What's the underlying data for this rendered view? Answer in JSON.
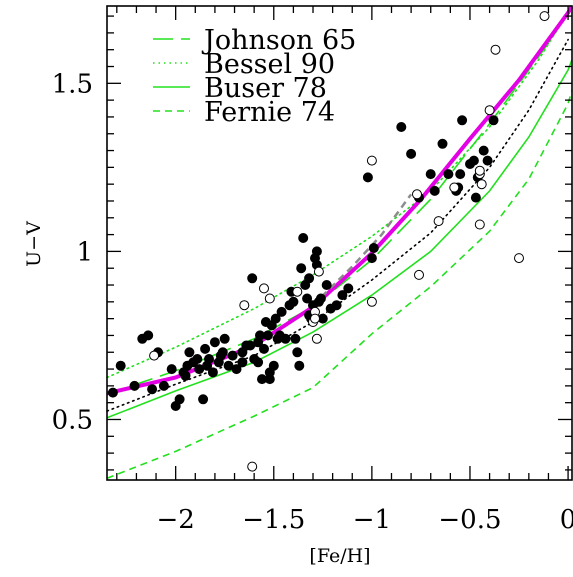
{
  "chart_data": {
    "type": "scatter",
    "title": "",
    "xlabel": "[Fe/H]",
    "ylabel": "U−V",
    "xlim": [
      -2.35,
      0.02
    ],
    "ylim": [
      0.32,
      1.73
    ],
    "xticks": [
      -2,
      -1.5,
      -1,
      -0.5,
      0
    ],
    "xtick_labels": [
      "−2",
      "−1.5",
      "−1",
      "−0.5",
      "0"
    ],
    "yticks": [
      0.5,
      1,
      1.5
    ],
    "ytick_labels": [
      "0.5",
      "1",
      "1.5"
    ],
    "grid": false,
    "legend_position": "top-left",
    "colors": {
      "green": "#22e01e",
      "magenta": "#e400e4",
      "gray": "#8c8c8c",
      "black": "#000000"
    },
    "series": [
      {
        "name": "Johnson 65",
        "kind": "line",
        "style": "longdash",
        "color": "#22e01e",
        "x": [
          -2.35,
          -2.0,
          -1.6,
          -1.3,
          -1.0,
          -0.7,
          -0.4,
          -0.1,
          0.02
        ],
        "y": [
          0.575,
          0.645,
          0.74,
          0.835,
          0.975,
          1.155,
          1.38,
          1.62,
          1.73
        ]
      },
      {
        "name": "Bessel 90",
        "kind": "line",
        "style": "dotted",
        "color": "#22e01e",
        "x": [
          -2.35,
          -2.0,
          -1.6,
          -1.3,
          -1.0,
          -0.7,
          -0.4,
          -0.15,
          0.02
        ],
        "y": [
          0.625,
          0.715,
          0.83,
          0.93,
          1.045,
          1.18,
          1.37,
          1.57,
          1.73
        ]
      },
      {
        "name": "Buser 78",
        "kind": "line",
        "style": "solid",
        "color": "#22e01e",
        "x": [
          -2.35,
          -2.0,
          -1.6,
          -1.3,
          -1.0,
          -0.7,
          -0.4,
          -0.2,
          0.0,
          0.02
        ],
        "y": [
          0.505,
          0.585,
          0.67,
          0.76,
          0.87,
          1.0,
          1.18,
          1.34,
          1.54,
          1.57
        ]
      },
      {
        "name": "Fernie 74",
        "kind": "line",
        "style": "dashed",
        "color": "#22e01e",
        "x": [
          -2.35,
          -2.0,
          -1.6,
          -1.3,
          -1.0,
          -0.7,
          -0.4,
          -0.2,
          0.0,
          0.02
        ],
        "y": [
          0.325,
          0.405,
          0.51,
          0.595,
          0.755,
          0.895,
          1.06,
          1.215,
          1.44,
          1.48
        ]
      },
      {
        "name": "",
        "kind": "line",
        "style": "solid",
        "color": "#e400e4",
        "x": [
          -2.35,
          -2.0,
          -1.6,
          -1.3,
          -1.0,
          -0.75,
          -0.5,
          -0.25,
          0.0,
          0.02
        ],
        "y": [
          0.578,
          0.625,
          0.72,
          0.835,
          0.995,
          1.155,
          1.335,
          1.51,
          1.71,
          1.73
        ]
      },
      {
        "name": "",
        "kind": "line",
        "style": "dashed",
        "color": "#8c8c8c",
        "x": [
          -1.3,
          -1.1,
          -0.95,
          -0.8
        ],
        "y": [
          0.84,
          0.955,
          1.05,
          1.17
        ]
      },
      {
        "name": "",
        "kind": "line",
        "style": "dotted",
        "color": "#000000",
        "x": [
          -2.35,
          -2.0,
          -1.6,
          -1.3,
          -1.0,
          -0.7,
          -0.4,
          -0.2,
          0.0
        ],
        "y": [
          0.525,
          0.605,
          0.69,
          0.79,
          0.915,
          1.055,
          1.25,
          1.42,
          1.63
        ]
      },
      {
        "name": "",
        "kind": "points",
        "marker": "filled",
        "color": "#000000",
        "x": [
          -2.32,
          -2.28,
          -2.21,
          -2.17,
          -2.14,
          -2.12,
          -2.09,
          -2.06,
          -2.0,
          -1.98,
          -1.96,
          -1.94,
          -1.93,
          -1.91,
          -1.89,
          -1.88,
          -1.86,
          -1.84,
          -1.83,
          -1.81,
          -1.8,
          -1.78,
          -1.76,
          -1.75,
          -1.73,
          -1.71,
          -1.69,
          -1.66,
          -1.64,
          -1.62,
          -1.61,
          -1.6,
          -1.58,
          -1.57,
          -1.56,
          -1.55,
          -1.54,
          -1.53,
          -1.52,
          -1.51,
          -1.5,
          -1.49,
          -1.48,
          -1.47,
          -1.46,
          -1.44,
          -1.42,
          -1.41,
          -1.4,
          -1.39,
          -1.38,
          -1.37,
          -1.36,
          -1.35,
          -1.34,
          -1.33,
          -1.32,
          -1.31,
          -1.3,
          -1.29,
          -1.28,
          -1.28,
          -1.27,
          -1.26,
          -1.25,
          -1.23,
          -1.21,
          -1.18,
          -1.15,
          -1.12,
          -1.02,
          -1.0,
          -0.99,
          -0.85,
          -0.8,
          -0.76,
          -0.7,
          -0.68,
          -0.64,
          -0.61,
          -0.57,
          -0.56,
          -0.55,
          -0.54,
          -0.5,
          -0.48,
          -0.47,
          -0.46,
          -0.43,
          -0.41,
          -0.38,
          -2.02,
          -1.95,
          -1.85,
          -1.77,
          -1.66,
          -1.58,
          -1.52,
          -1.32
        ],
        "y": [
          0.58,
          0.66,
          0.6,
          0.74,
          0.75,
          0.59,
          0.7,
          0.6,
          0.54,
          0.56,
          0.64,
          0.66,
          0.7,
          0.67,
          0.68,
          0.65,
          0.56,
          0.66,
          0.68,
          0.64,
          0.73,
          0.67,
          0.7,
          0.74,
          0.66,
          0.69,
          0.65,
          0.7,
          0.72,
          0.72,
          0.92,
          0.68,
          0.67,
          0.75,
          0.62,
          0.71,
          0.79,
          0.75,
          0.64,
          0.78,
          0.66,
          0.8,
          0.74,
          0.75,
          0.82,
          0.74,
          0.84,
          0.88,
          0.85,
          0.74,
          0.7,
          0.66,
          0.95,
          1.04,
          0.9,
          0.86,
          0.92,
          0.8,
          0.84,
          0.98,
          0.96,
          1.0,
          0.85,
          0.86,
          0.8,
          0.9,
          0.83,
          0.84,
          0.87,
          0.89,
          1.22,
          0.98,
          1.01,
          1.37,
          1.29,
          1.16,
          1.23,
          1.18,
          1.32,
          1.23,
          1.18,
          1.19,
          1.23,
          1.39,
          1.26,
          1.27,
          1.16,
          1.22,
          1.3,
          1.27,
          1.39,
          0.65,
          0.63,
          0.71,
          0.69,
          0.67,
          0.73,
          0.62,
          0.81
        ]
      },
      {
        "name": "",
        "kind": "points",
        "marker": "open",
        "color": "#000000",
        "x": [
          -0.12,
          -0.4,
          -0.37,
          -1.0,
          -0.77,
          -0.45,
          -0.44,
          -0.45,
          -0.58,
          -0.66,
          -0.45,
          -0.76,
          -0.25,
          -1.0,
          -1.27,
          -1.38,
          -1.29,
          -1.3,
          -1.61,
          -1.65,
          -1.52,
          -1.55,
          -2.11,
          -1.28,
          -1.29
        ],
        "y": [
          1.7,
          1.42,
          1.6,
          1.27,
          1.17,
          1.23,
          1.2,
          1.08,
          1.19,
          1.09,
          1.24,
          0.93,
          0.98,
          0.85,
          0.94,
          0.88,
          0.82,
          0.79,
          0.36,
          0.84,
          0.86,
          0.89,
          0.69,
          0.74,
          0.8
        ]
      }
    ]
  }
}
